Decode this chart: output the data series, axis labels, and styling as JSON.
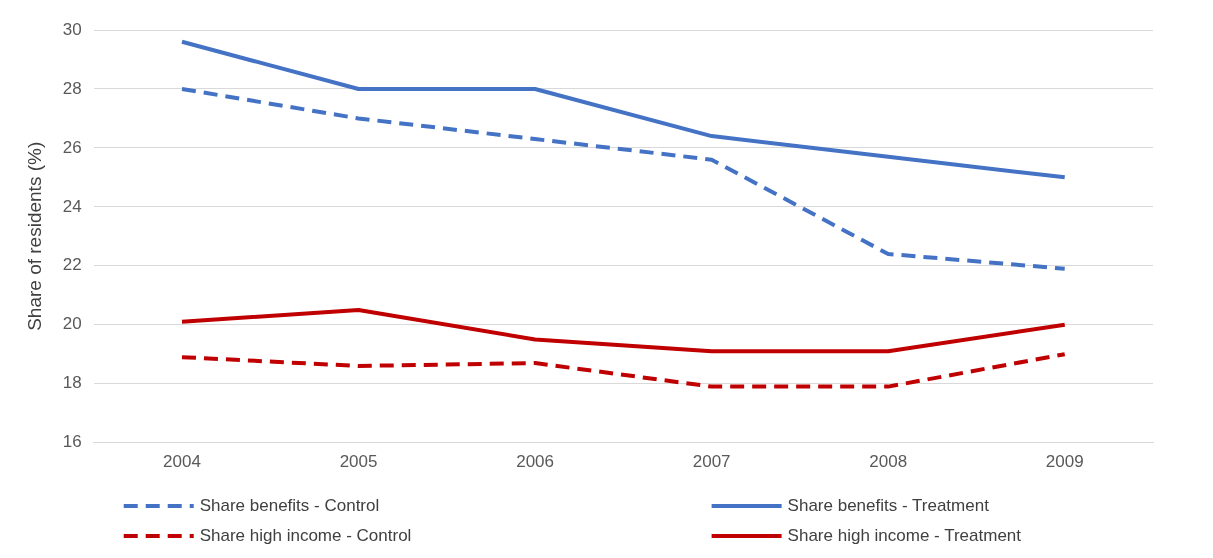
{
  "chart_data": {
    "type": "line",
    "ylabel": "Share of residents (%)",
    "categories": [
      "2004",
      "2005",
      "2006",
      "2007",
      "2008",
      "2009"
    ],
    "ylim": [
      16,
      30
    ],
    "yticks": [
      16,
      18,
      20,
      22,
      24,
      26,
      28,
      30
    ],
    "grid": "y",
    "legend": "bottom",
    "marker": "none",
    "series": [
      {
        "name": "Share benefits - Control",
        "color": "#4472c4",
        "line_style": "dashed",
        "values": [
          28,
          27,
          26.3,
          25.6,
          22.4,
          21.9
        ]
      },
      {
        "name": "Share benefits - Treatment",
        "color": "#4472c4",
        "line_style": "solid",
        "values": [
          29.6,
          28,
          28,
          26.4,
          25.7,
          25
        ]
      },
      {
        "name": "Share high income - Control",
        "color": "#c00000",
        "line_style": "dashed",
        "values": [
          18.9,
          18.6,
          18.7,
          17.9,
          17.9,
          19
        ]
      },
      {
        "name": "Share high income - Treatment",
        "color": "#c00000",
        "line_style": "solid",
        "values": [
          20.1,
          20.5,
          19.5,
          19.1,
          19.1,
          20
        ]
      }
    ]
  }
}
